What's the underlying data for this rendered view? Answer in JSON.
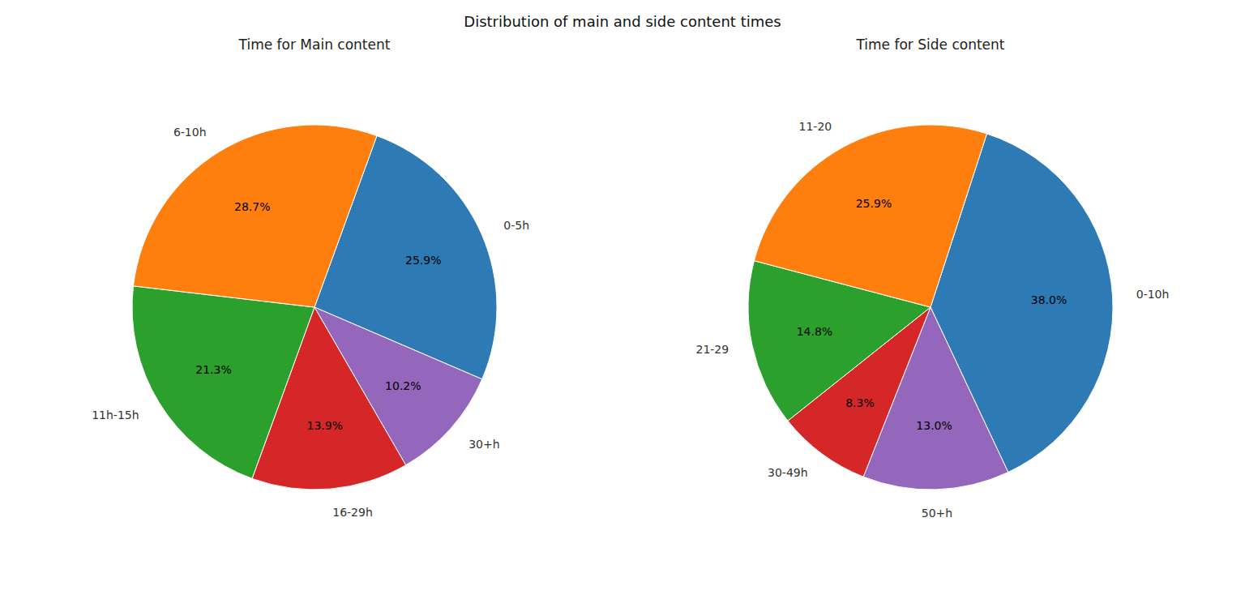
{
  "title": "Distribution of main and side content times",
  "chart_data": [
    {
      "type": "pie",
      "title": "Time for Main content",
      "categories": [
        "0-5h",
        "30+h",
        "16-29h",
        "11h-15h",
        "6-10h"
      ],
      "values": [
        25.9,
        10.2,
        13.9,
        21.3,
        28.7
      ],
      "value_labels": [
        "25.9%",
        "10.2%",
        "13.9%",
        "21.3%",
        "28.7%"
      ],
      "colors": [
        "#2e7ab5",
        "#9467bd",
        "#d62728",
        "#2ca02c",
        "#ff7f0e"
      ],
      "data_labels": true
    },
    {
      "type": "pie",
      "title": "Time for Side content",
      "categories": [
        "0-10h",
        "50+h",
        "30-49h",
        "21-29",
        "11-20"
      ],
      "values": [
        38.0,
        13.0,
        8.3,
        14.8,
        25.9
      ],
      "value_labels": [
        "38.0%",
        "13.0%",
        "8.3%",
        "14.8%",
        "25.9%"
      ],
      "colors": [
        "#2e7ab5",
        "#9467bd",
        "#d62728",
        "#2ca02c",
        "#ff7f0e"
      ],
      "data_labels": true
    }
  ]
}
